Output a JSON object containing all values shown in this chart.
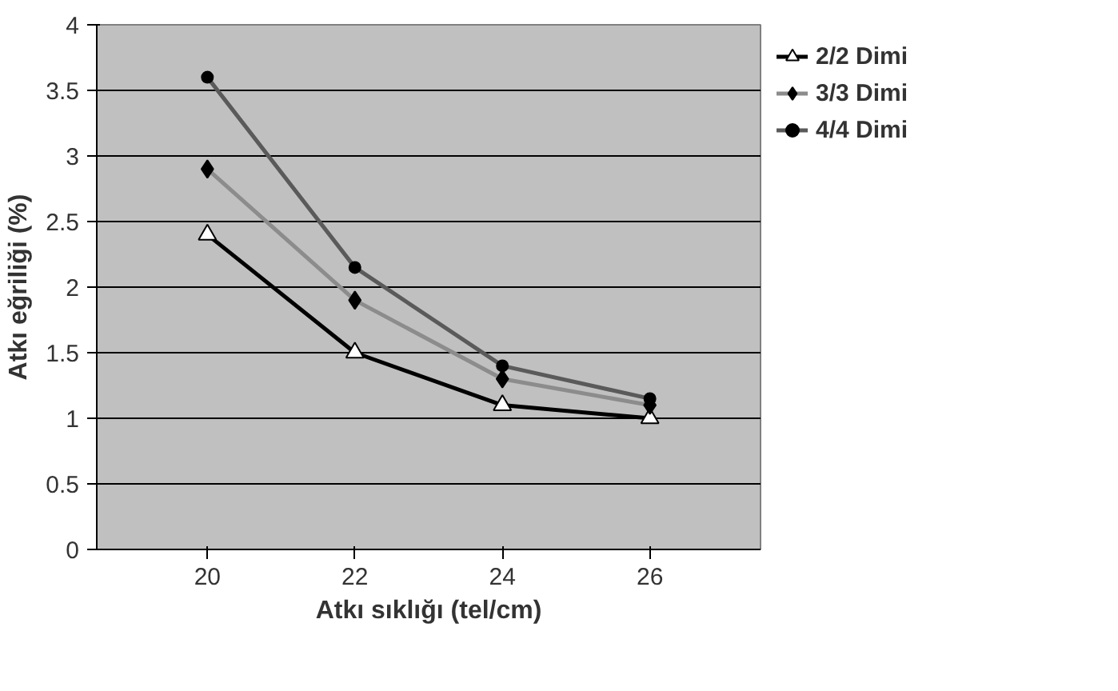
{
  "chart_data": {
    "type": "line",
    "xlabel": "Atkı sıklığı (tel/cm)",
    "ylabel": "Atkı eğriliği (%)",
    "categories": [
      "20",
      "22",
      "24",
      "26"
    ],
    "series": [
      {
        "name": "2/2 Dimi",
        "color": "#000000",
        "values": [
          2.4,
          1.5,
          1.1,
          1.0
        ],
        "marker": "triangle"
      },
      {
        "name": "3/3 Dimi",
        "color": "#8c8c8c",
        "values": [
          2.9,
          1.9,
          1.3,
          1.1
        ],
        "marker": "diamond"
      },
      {
        "name": "4/4 Dimi",
        "color": "#5a5a5a",
        "values": [
          3.6,
          2.15,
          1.4,
          1.15
        ],
        "marker": "circle"
      }
    ],
    "ylim": [
      0,
      4
    ],
    "yticks": [
      0,
      0.5,
      1,
      1.5,
      2,
      2.5,
      3,
      3.5,
      4
    ],
    "grid": "y",
    "legend": "right"
  }
}
